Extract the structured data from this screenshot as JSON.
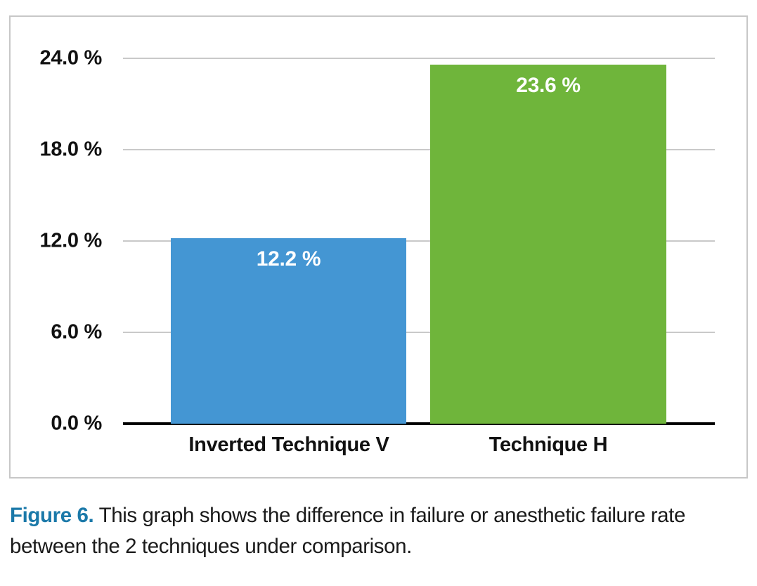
{
  "figure": {
    "caption_label": "Figure 6.",
    "caption_text": " This graph shows the difference in failure or anesthetic failure rate between the 2 techniques under comparison."
  },
  "chart_data": {
    "type": "bar",
    "title": "",
    "xlabel": "",
    "ylabel": "",
    "categories": [
      "Inverted Technique V",
      "Technique H"
    ],
    "values": [
      12.2,
      23.6
    ],
    "value_labels": [
      "12.2 %",
      "23.6 %"
    ],
    "bar_colors": [
      "#4496d3",
      "#6fb53b"
    ],
    "ylim": [
      0,
      24
    ],
    "yticks": [
      0,
      6,
      12,
      18,
      24
    ],
    "ytick_labels": [
      "0.0 %",
      "6.0 %",
      "12.0 %",
      "18.0 %",
      "24.0 %"
    ],
    "grid": true,
    "legend": "none"
  },
  "colors": {
    "caption_accent": "#1b79a9",
    "gridline": "#c9c9c9",
    "frame_border": "#c7c7c7",
    "axis_line": "#000000",
    "axis_text": "#111111",
    "bar_label_text": "#ffffff"
  }
}
